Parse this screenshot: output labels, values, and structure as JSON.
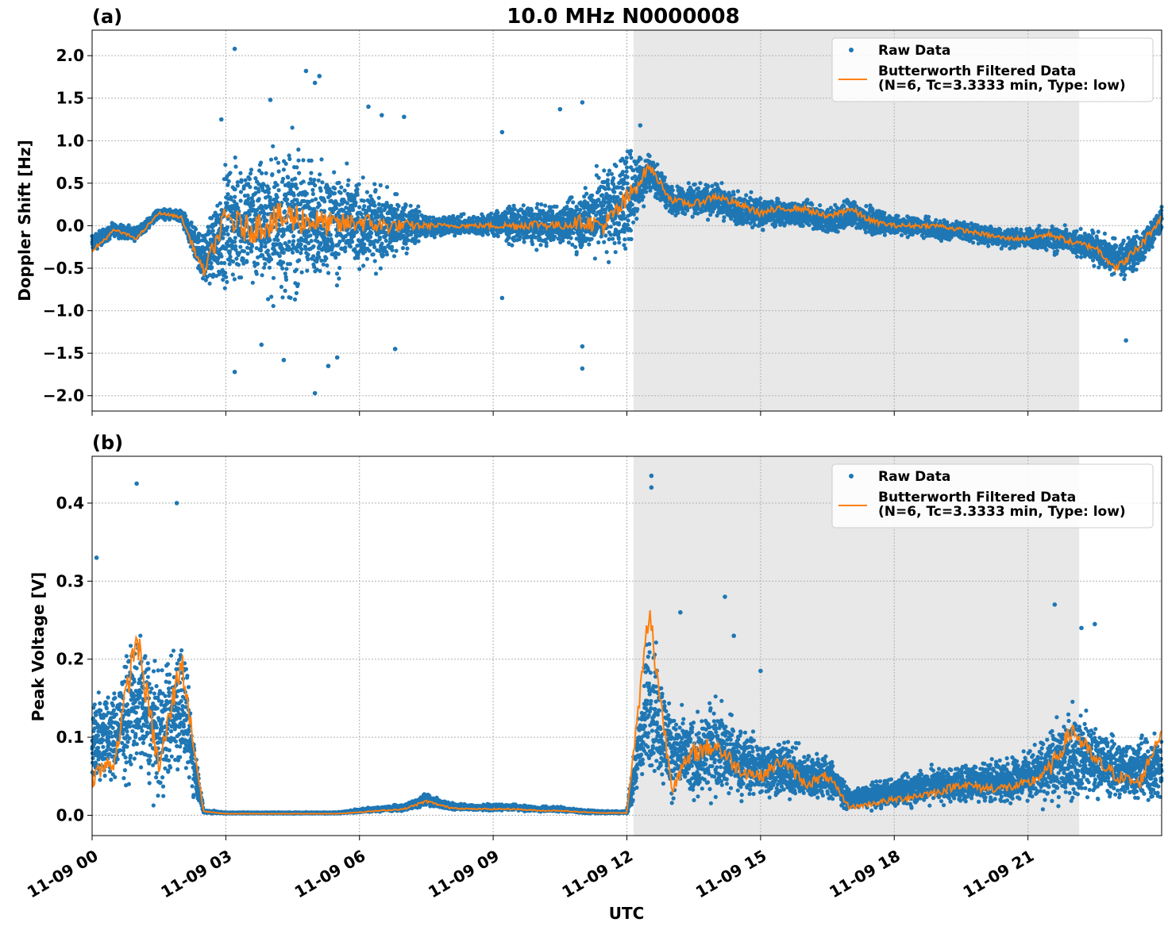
{
  "figure": {
    "title": "10.0 MHz N0000008",
    "xlabel": "UTC",
    "colors": {
      "raw": "#1f77b4",
      "filtered": "#ff7f0e",
      "shade": "#e8e8e8",
      "grid": "#b0b0b0"
    },
    "xticks": [
      {
        "hour": 0,
        "label": "11-09 00"
      },
      {
        "hour": 3,
        "label": "11-09 03"
      },
      {
        "hour": 6,
        "label": "11-09 06"
      },
      {
        "hour": 9,
        "label": "11-09 09"
      },
      {
        "hour": 12,
        "label": "11-09 12"
      },
      {
        "hour": 15,
        "label": "11-09 15"
      },
      {
        "hour": 18,
        "label": "11-09 18"
      },
      {
        "hour": 21,
        "label": "11-09 21"
      }
    ]
  },
  "chart_data": [
    {
      "type": "scatter",
      "panel_label": "(a)",
      "ylabel": "Doppler Shift [Hz]",
      "xlim_hours": [
        0,
        24
      ],
      "ylim": [
        -2.18,
        2.3
      ],
      "yticks": [
        {
          "v": 2.0,
          "label": "2.0"
        },
        {
          "v": 1.5,
          "label": "1.5"
        },
        {
          "v": 1.0,
          "label": "1.0"
        },
        {
          "v": 0.5,
          "label": "0.5"
        },
        {
          "v": 0.0,
          "label": "0.0"
        },
        {
          "v": -0.5,
          "label": "−0.5"
        },
        {
          "v": -1.0,
          "label": "−1.0"
        },
        {
          "v": -1.5,
          "label": "−1.5"
        },
        {
          "v": -2.0,
          "label": "−2.0"
        }
      ],
      "shaded_region_hours": [
        12.15,
        22.15
      ],
      "grid": true,
      "legend_position": "upper right",
      "series": [
        {
          "name": "Raw Data",
          "style": "points",
          "x_hours": [
            0,
            0.5,
            1,
            1.5,
            2,
            2.5,
            3,
            3.5,
            4,
            4.5,
            5,
            5.5,
            6,
            6.5,
            7,
            7.5,
            8,
            8.5,
            9,
            9.5,
            10,
            10.5,
            11,
            11.5,
            12,
            12.5,
            13,
            13.5,
            14,
            14.5,
            15,
            15.5,
            16,
            16.5,
            17,
            17.5,
            18,
            18.5,
            19,
            19.5,
            20,
            20.5,
            21,
            21.5,
            22,
            22.5,
            23,
            23.5,
            24
          ],
          "center": [
            -0.2,
            -0.05,
            -0.1,
            0.15,
            0.1,
            -0.4,
            0,
            0.05,
            0.05,
            0.05,
            0.05,
            0.03,
            0,
            0,
            0,
            0,
            0,
            0,
            0.02,
            0.02,
            0,
            0.02,
            0.05,
            0.2,
            0.3,
            0.65,
            0.3,
            0.3,
            0.3,
            0.2,
            0.15,
            0.15,
            0.15,
            0.05,
            0.15,
            0.05,
            0,
            0,
            -0.05,
            -0.05,
            -0.1,
            -0.15,
            -0.15,
            -0.15,
            -0.2,
            -0.25,
            -0.4,
            -0.3,
            0.1
          ],
          "spread": [
            0.15,
            0.1,
            0.1,
            0.08,
            0.1,
            0.4,
            0.9,
            1.0,
            1.1,
            1.2,
            0.9,
            0.8,
            0.7,
            0.6,
            0.4,
            0.2,
            0.15,
            0.15,
            0.2,
            0.3,
            0.3,
            0.3,
            0.5,
            0.7,
            0.8,
            0.3,
            0.2,
            0.25,
            0.25,
            0.25,
            0.25,
            0.2,
            0.2,
            0.2,
            0.25,
            0.2,
            0.15,
            0.15,
            0.15,
            0.15,
            0.15,
            0.15,
            0.15,
            0.2,
            0.2,
            0.25,
            0.3,
            0.3,
            0.2
          ],
          "outliers": [
            {
              "x": 3.2,
              "y": 2.08
            },
            {
              "x": 4.8,
              "y": 1.82
            },
            {
              "x": 5.1,
              "y": 1.76
            },
            {
              "x": 5.0,
              "y": 1.68
            },
            {
              "x": 6.2,
              "y": 1.4
            },
            {
              "x": 7.0,
              "y": 1.28
            },
            {
              "x": 11.0,
              "y": 1.45
            },
            {
              "x": 10.5,
              "y": 1.37
            },
            {
              "x": 3.2,
              "y": -1.72
            },
            {
              "x": 5.0,
              "y": -1.97
            },
            {
              "x": 5.3,
              "y": -1.65
            },
            {
              "x": 4.3,
              "y": -1.58
            },
            {
              "x": 6.8,
              "y": -1.45
            },
            {
              "x": 11.0,
              "y": -1.68
            },
            {
              "x": 11.0,
              "y": -1.42
            },
            {
              "x": 23.2,
              "y": -1.35
            },
            {
              "x": 9.2,
              "y": -0.85
            },
            {
              "x": 2.9,
              "y": 1.25
            },
            {
              "x": 4.0,
              "y": 1.48
            },
            {
              "x": 6.5,
              "y": 1.3
            },
            {
              "x": 9.2,
              "y": 1.1
            },
            {
              "x": 12.3,
              "y": 1.18
            },
            {
              "x": 3.8,
              "y": -1.4
            },
            {
              "x": 5.5,
              "y": -1.55
            }
          ]
        },
        {
          "name": "Butterworth Filtered Data\n(N=6, Tc=3.3333 min, Type: low)",
          "style": "line",
          "x_hours": [
            0,
            0.5,
            1,
            1.5,
            2,
            2.5,
            3,
            3.5,
            4,
            4.5,
            5,
            5.5,
            6,
            6.5,
            7,
            7.5,
            8,
            8.5,
            9,
            9.5,
            10,
            10.5,
            11,
            11.5,
            12,
            12.5,
            13,
            13.5,
            14,
            14.5,
            15,
            15.5,
            16,
            16.5,
            17,
            17.5,
            18,
            18.5,
            19,
            19.5,
            20,
            20.5,
            21,
            21.5,
            22,
            22.5,
            23,
            23.5,
            24
          ],
          "y": [
            -0.3,
            -0.05,
            -0.15,
            0.15,
            0.1,
            -0.55,
            0.1,
            -0.05,
            0.05,
            0.1,
            0.05,
            0.0,
            0.05,
            0.0,
            0.0,
            0.0,
            0.0,
            0.0,
            0.0,
            0.0,
            0.02,
            0.0,
            0.05,
            0.0,
            0.3,
            0.7,
            0.3,
            0.25,
            0.35,
            0.25,
            0.15,
            0.2,
            0.2,
            0.1,
            0.2,
            0.05,
            0.0,
            0.0,
            0.0,
            -0.05,
            -0.1,
            -0.15,
            -0.15,
            -0.1,
            -0.2,
            -0.25,
            -0.5,
            -0.25,
            0.1
          ]
        }
      ]
    },
    {
      "type": "scatter",
      "panel_label": "(b)",
      "ylabel": "Peak Voltage [V]",
      "xlim_hours": [
        0,
        24
      ],
      "ylim": [
        -0.026,
        0.46
      ],
      "yticks": [
        {
          "v": 0.4,
          "label": "0.4"
        },
        {
          "v": 0.3,
          "label": "0.3"
        },
        {
          "v": 0.2,
          "label": "0.2"
        },
        {
          "v": 0.1,
          "label": "0.1"
        },
        {
          "v": 0.0,
          "label": "0.0"
        }
      ],
      "shaded_region_hours": [
        12.15,
        22.15
      ],
      "grid": true,
      "legend_position": "upper right",
      "series": [
        {
          "name": "Raw Data",
          "style": "points",
          "x_hours": [
            0,
            0.5,
            1,
            1.5,
            2,
            2.5,
            3,
            3.5,
            4,
            4.5,
            5,
            5.5,
            6,
            6.5,
            7,
            7.5,
            8,
            8.5,
            9,
            9.5,
            10,
            10.5,
            11,
            11.5,
            12,
            12.5,
            13,
            13.5,
            14,
            14.5,
            15,
            15.5,
            16,
            16.5,
            17,
            17.5,
            18,
            18.5,
            19,
            19.5,
            20,
            20.5,
            21,
            21.5,
            22,
            22.5,
            23,
            23.5,
            24
          ],
          "center": [
            0.1,
            0.1,
            0.15,
            0.1,
            0.15,
            0.005,
            0.003,
            0.003,
            0.003,
            0.003,
            0.003,
            0.003,
            0.006,
            0.008,
            0.01,
            0.02,
            0.012,
            0.01,
            0.01,
            0.01,
            0.008,
            0.008,
            0.005,
            0.004,
            0.004,
            0.15,
            0.08,
            0.07,
            0.09,
            0.07,
            0.06,
            0.06,
            0.05,
            0.05,
            0.02,
            0.025,
            0.03,
            0.035,
            0.04,
            0.04,
            0.045,
            0.045,
            0.05,
            0.06,
            0.08,
            0.07,
            0.06,
            0.06,
            0.06
          ],
          "spread": [
            0.08,
            0.08,
            0.12,
            0.1,
            0.12,
            0.003,
            0.001,
            0.001,
            0.001,
            0.001,
            0.001,
            0.001,
            0.003,
            0.004,
            0.006,
            0.01,
            0.006,
            0.005,
            0.005,
            0.005,
            0.004,
            0.004,
            0.003,
            0.002,
            0.002,
            0.13,
            0.07,
            0.07,
            0.08,
            0.06,
            0.05,
            0.05,
            0.04,
            0.04,
            0.015,
            0.02,
            0.025,
            0.03,
            0.03,
            0.03,
            0.035,
            0.035,
            0.04,
            0.06,
            0.08,
            0.06,
            0.05,
            0.05,
            0.06
          ],
          "outliers": [
            {
              "x": 1.0,
              "y": 0.425
            },
            {
              "x": 1.9,
              "y": 0.4
            },
            {
              "x": 0.1,
              "y": 0.33
            },
            {
              "x": 12.55,
              "y": 0.435
            },
            {
              "x": 12.55,
              "y": 0.42
            },
            {
              "x": 13.2,
              "y": 0.26
            },
            {
              "x": 14.2,
              "y": 0.28
            },
            {
              "x": 14.4,
              "y": 0.23
            },
            {
              "x": 21.6,
              "y": 0.27
            },
            {
              "x": 22.2,
              "y": 0.24
            },
            {
              "x": 22.5,
              "y": 0.245
            },
            {
              "x": 15.0,
              "y": 0.185
            }
          ]
        },
        {
          "name": "Butterworth Filtered Data\n(N=6, Tc=3.3333 min, Type: low)",
          "style": "line",
          "x_hours": [
            0,
            0.5,
            1,
            1.5,
            2,
            2.5,
            3,
            3.5,
            4,
            4.5,
            5,
            5.5,
            6,
            6.5,
            7,
            7.5,
            8,
            8.5,
            9,
            9.5,
            10,
            10.5,
            11,
            11.5,
            12,
            12.5,
            13,
            13.5,
            14,
            14.5,
            15,
            15.5,
            16,
            16.5,
            17,
            17.5,
            18,
            18.5,
            19,
            19.5,
            20,
            20.5,
            21,
            21.5,
            22,
            22.5,
            23,
            23.5,
            24
          ],
          "y": [
            0.05,
            0.07,
            0.23,
            0.06,
            0.2,
            0.005,
            0.002,
            0.002,
            0.002,
            0.002,
            0.002,
            0.002,
            0.004,
            0.006,
            0.008,
            0.018,
            0.01,
            0.008,
            0.008,
            0.008,
            0.006,
            0.006,
            0.004,
            0.003,
            0.003,
            0.26,
            0.04,
            0.08,
            0.09,
            0.06,
            0.05,
            0.07,
            0.04,
            0.05,
            0.01,
            0.015,
            0.02,
            0.025,
            0.03,
            0.04,
            0.035,
            0.035,
            0.04,
            0.06,
            0.11,
            0.07,
            0.05,
            0.04,
            0.11
          ]
        }
      ]
    }
  ]
}
